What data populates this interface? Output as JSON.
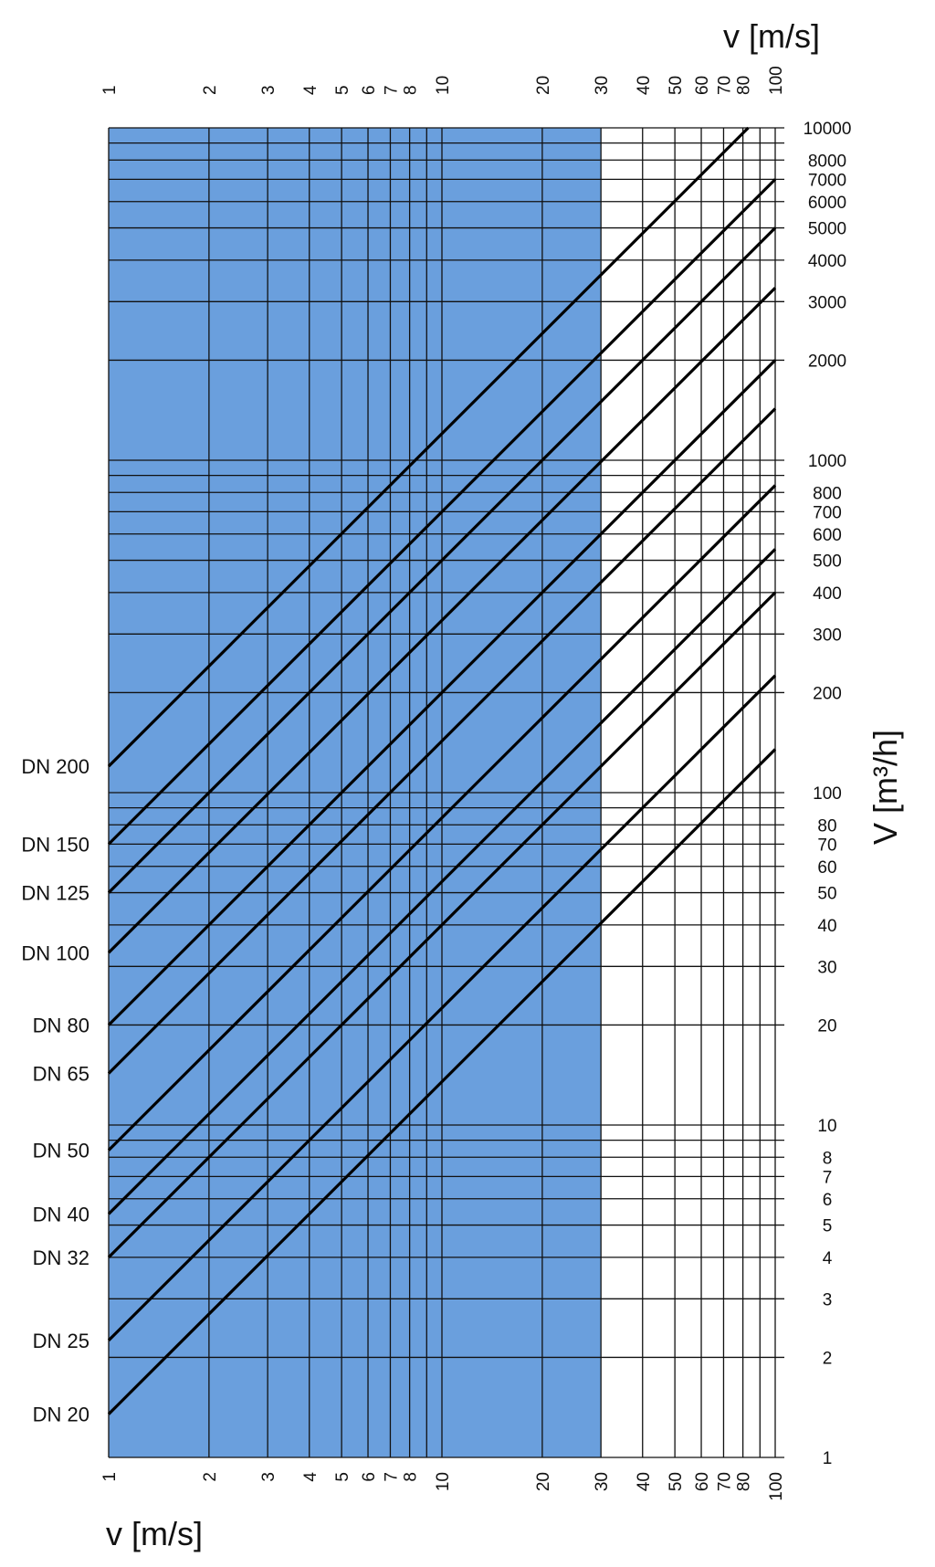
{
  "chart_data": {
    "type": "line",
    "title": "",
    "x_axis": {
      "label": "v [m/s]",
      "scale": "log",
      "range": [
        1,
        100
      ],
      "ticks": [
        1,
        2,
        3,
        4,
        5,
        6,
        7,
        8,
        10,
        20,
        30,
        40,
        50,
        60,
        70,
        80,
        100
      ],
      "tick_labels": [
        "1",
        "2",
        "3",
        "4",
        "5",
        "6",
        "7",
        "8",
        "10",
        "20",
        "30",
        "40",
        "50",
        "60",
        "70",
        "80",
        "100"
      ],
      "gridlines": [
        1,
        2,
        3,
        4,
        5,
        6,
        7,
        8,
        9,
        10,
        20,
        30,
        40,
        50,
        60,
        70,
        80,
        90,
        100
      ],
      "labels_on": [
        "top",
        "bottom"
      ]
    },
    "y_axis": {
      "label": "V [m³/h]",
      "scale": "log",
      "range": [
        1,
        10000
      ],
      "ticks": [
        1,
        2,
        3,
        4,
        5,
        6,
        7,
        8,
        10,
        20,
        30,
        40,
        50,
        60,
        70,
        80,
        100,
        200,
        300,
        400,
        500,
        600,
        700,
        800,
        1000,
        2000,
        3000,
        4000,
        5000,
        6000,
        7000,
        8000,
        10000
      ],
      "tick_labels": [
        "1",
        "2",
        "3",
        "4",
        "5",
        "6",
        "7",
        "8",
        "10",
        "20",
        "30",
        "40",
        "50",
        "60",
        "70",
        "80",
        "100",
        "200",
        "300",
        "400",
        "500",
        "600",
        "700",
        "800",
        "1000",
        "2000",
        "3000",
        "4000",
        "5000",
        "6000",
        "7000",
        "8000",
        "10000"
      ],
      "gridlines": [
        1,
        2,
        3,
        4,
        5,
        6,
        7,
        8,
        9,
        10,
        20,
        30,
        40,
        50,
        60,
        70,
        80,
        90,
        100,
        200,
        300,
        400,
        500,
        600,
        700,
        800,
        900,
        1000,
        2000,
        3000,
        4000,
        5000,
        6000,
        7000,
        8000,
        9000,
        10000
      ],
      "position": "right"
    },
    "shaded_region": {
      "x_from": 1,
      "x_to": 30,
      "color": "#6a9fdd"
    },
    "series": [
      {
        "name": "DN 20",
        "x": [
          1,
          100
        ],
        "y": [
          1.35,
          135
        ]
      },
      {
        "name": "DN 25",
        "x": [
          1,
          100
        ],
        "y": [
          2.25,
          225
        ]
      },
      {
        "name": "DN 32",
        "x": [
          1,
          100
        ],
        "y": [
          4,
          400
        ]
      },
      {
        "name": "DN 40",
        "x": [
          1,
          100
        ],
        "y": [
          5.4,
          540
        ]
      },
      {
        "name": "DN 50",
        "x": [
          1,
          100
        ],
        "y": [
          8.4,
          840
        ]
      },
      {
        "name": "DN 65",
        "x": [
          1,
          100
        ],
        "y": [
          14.3,
          1430
        ]
      },
      {
        "name": "DN 80",
        "x": [
          1,
          100
        ],
        "y": [
          20,
          2000
        ]
      },
      {
        "name": "DN 100",
        "x": [
          1,
          100
        ],
        "y": [
          33,
          3300
        ]
      },
      {
        "name": "DN 125",
        "x": [
          1,
          100
        ],
        "y": [
          50,
          5000
        ]
      },
      {
        "name": "DN 150",
        "x": [
          1,
          100
        ],
        "y": [
          70,
          7000
        ]
      },
      {
        "name": "DN 200",
        "x": [
          1,
          83
        ],
        "y": [
          120,
          10000
        ]
      }
    ],
    "colors": {
      "shade": "#6a9fdd",
      "grid": "#111111",
      "line": "#000000",
      "background": "#ffffff"
    },
    "grid": true,
    "legend": "left"
  }
}
